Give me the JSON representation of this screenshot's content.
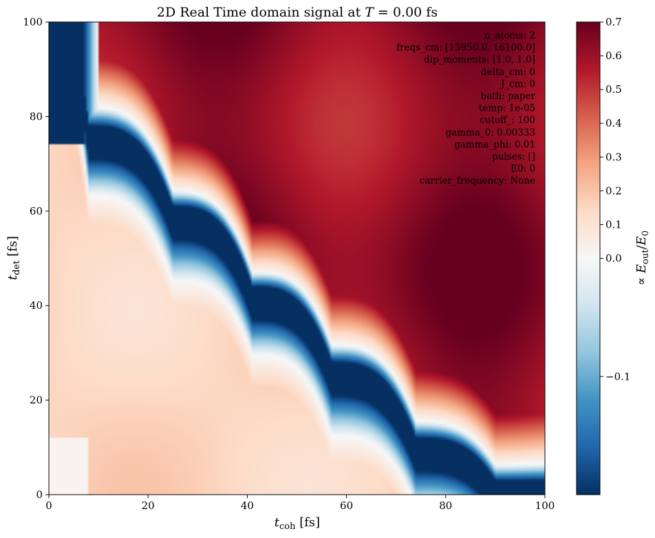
{
  "chart_data": {
    "type": "heatmap",
    "title": {
      "prefix": "2D Real Time domain signal at ",
      "symbol": "T",
      "suffix": " = 0.00 fs"
    },
    "xlabel": {
      "main": "t",
      "sub": "coh",
      "unit": " [fs]"
    },
    "ylabel": {
      "main": "t",
      "sub": "det",
      "unit": " [fs]"
    },
    "xlim": [
      0,
      100
    ],
    "ylim": [
      0,
      100
    ],
    "xticks": [
      "0",
      "20",
      "40",
      "60",
      "80",
      "100"
    ],
    "yticks": [
      "0",
      "20",
      "40",
      "60",
      "80",
      "100"
    ],
    "colormap": "RdBu_r",
    "colorbar": {
      "label": {
        "prefix": "∝ ",
        "num": "E",
        "num_sub": "out",
        "sep": "/",
        "den": "E",
        "den_sub": "0"
      },
      "range": [
        -0.2,
        0.7
      ],
      "ticks": [
        "0.7",
        "0.6",
        "0.5",
        "0.4",
        "0.3",
        "0.2",
        "0.1",
        "0.0",
        "−0.1"
      ],
      "tick_values": [
        0.7,
        0.6,
        0.5,
        0.4,
        0.3,
        0.2,
        0.1,
        0.0,
        -0.1
      ]
    },
    "signal": {
      "description_values": "approximate field levels across the plane",
      "lower_left_region": 0.15,
      "diagonal_band_min": -0.2,
      "upper_right_region": 0.62,
      "band_step_tcoh": [
        0,
        8,
        25,
        41,
        57,
        74,
        90,
        100
      ],
      "band_step_tdet": [
        100,
        75,
        58,
        41,
        25,
        9,
        0,
        0
      ]
    },
    "annotations": [
      "n_atoms: 2",
      "freqs_cm: [15950.0, 16100.0]",
      "dip_moments: [1.0, 1.0]",
      "delta_cm: 0",
      "J_cm: 0",
      "bath: paper",
      "temp: 1e-05",
      "cutoff_: 100",
      "gamma_0: 0.00333",
      "gamma_phi: 0.01",
      "pulses: []",
      "E0: 0",
      "carrier_frequency: None"
    ]
  }
}
